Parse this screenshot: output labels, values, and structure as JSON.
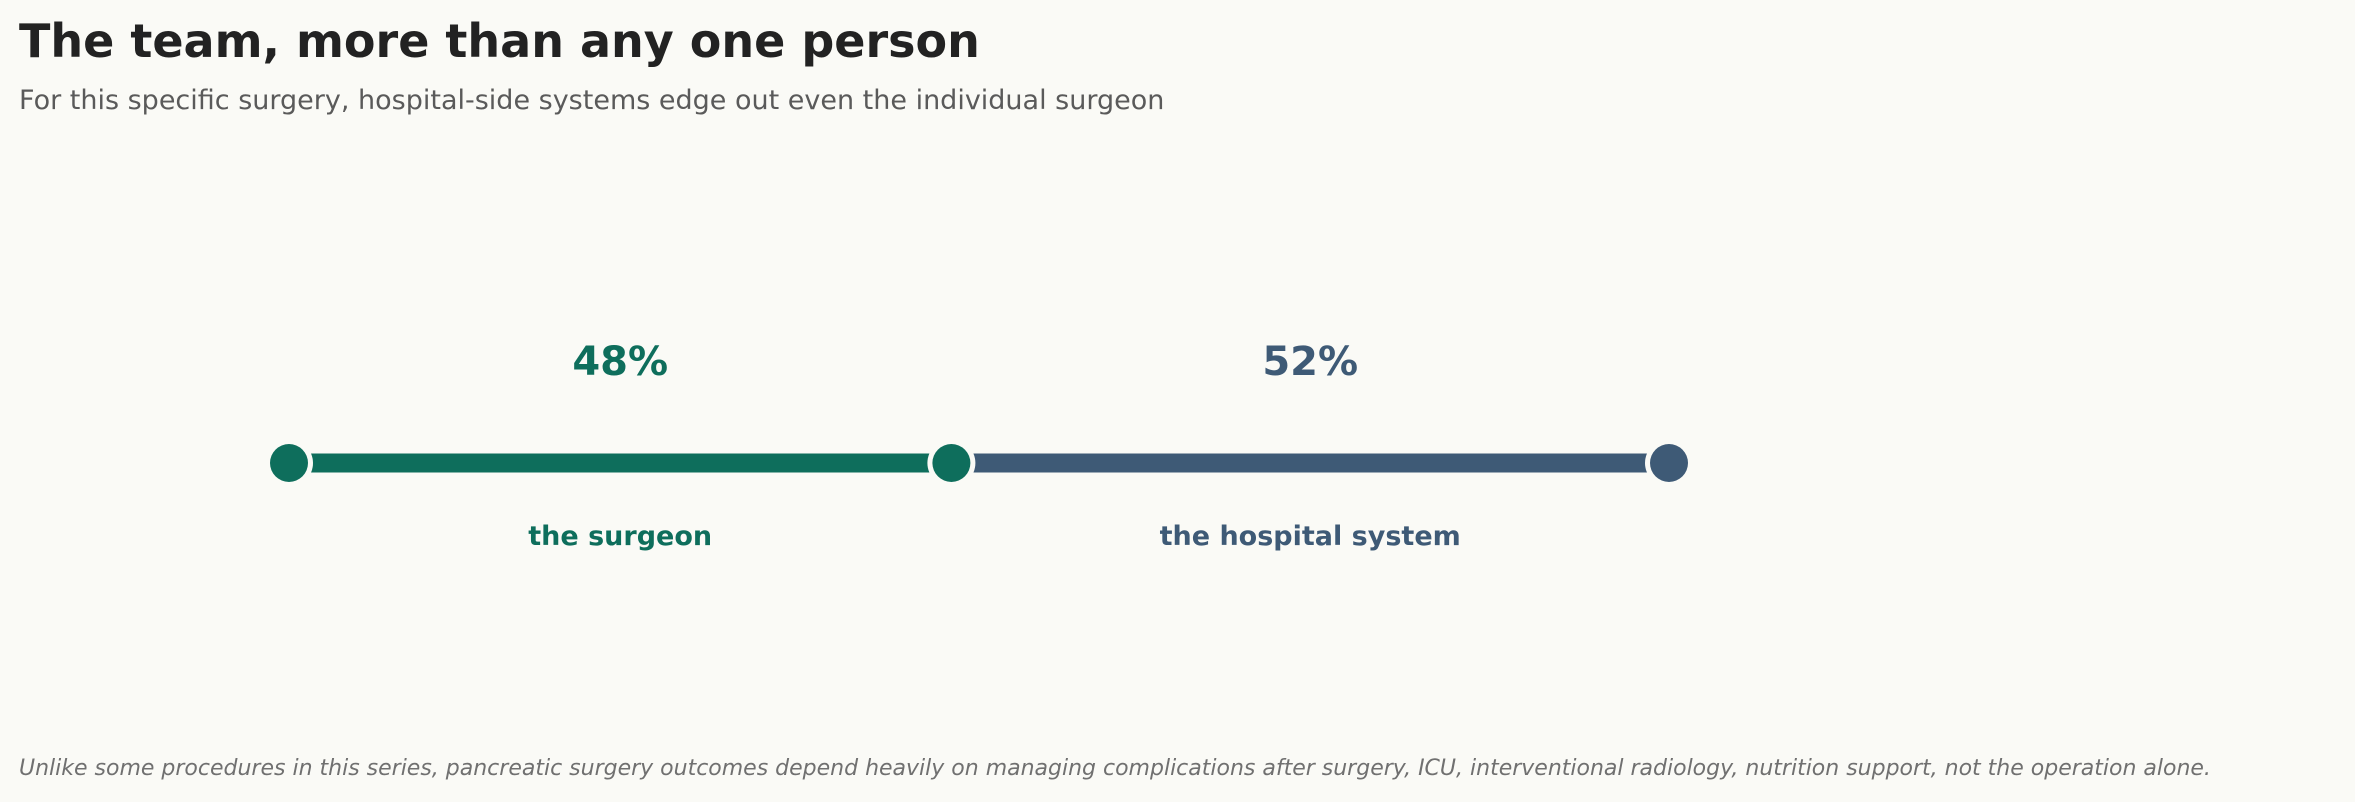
{
  "header": {
    "title": "The team, more than any one person",
    "subtitle": "For this specific surgery, hospital-side systems edge out even the individual surgeon"
  },
  "footnote": "Unlike some procedures in this series, pancreatic surgery outcomes depend heavily on managing complications after surgery, ICU, interventional radiology, nutrition support, not the operation alone.",
  "chart_data": {
    "type": "bar",
    "orientation": "horizontal",
    "stacked": true,
    "total": 100,
    "segments": [
      {
        "label": "the surgeon",
        "value": 48,
        "value_label": "48%",
        "color": "#0e6e5c"
      },
      {
        "label": "the hospital system",
        "value": 52,
        "value_label": "52%",
        "color": "#3e5a76"
      }
    ],
    "xlim": [
      0,
      100
    ],
    "grid": false,
    "legend": "none"
  }
}
